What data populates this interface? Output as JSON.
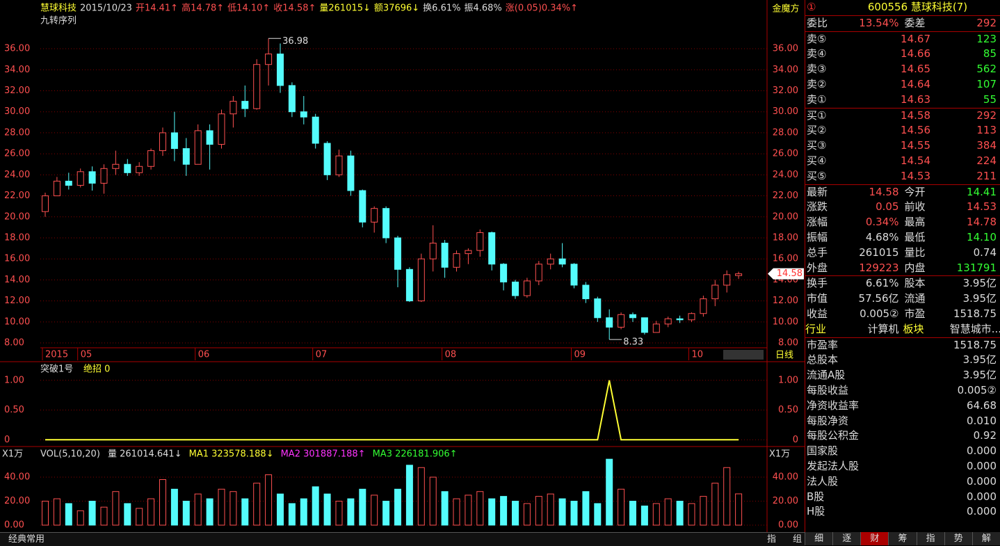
{
  "header": {
    "items": [
      "慧球科技",
      "2015/10/23",
      "开14.41↑",
      "高14.78↑",
      "低14.10↑",
      "收14.58↑",
      "量261015↓",
      "额37696↓",
      "换6.61%",
      "振4.68%",
      "涨(0.05)0.34%↑"
    ],
    "subtitle": "九转序列",
    "brand": "金魔方",
    "period": "日线"
  },
  "chart_data": [
    {
      "type": "candlestick",
      "colors": {
        "up": "#ff5050",
        "down": "#54fcfc"
      },
      "categories": [
        "2015",
        null,
        null,
        "05",
        null,
        null,
        null,
        null,
        null,
        null,
        null,
        null,
        null,
        "06",
        null,
        null,
        null,
        null,
        null,
        null,
        null,
        null,
        null,
        "07",
        null,
        null,
        null,
        null,
        null,
        null,
        null,
        null,
        null,
        null,
        "08",
        null,
        null,
        null,
        null,
        null,
        null,
        null,
        null,
        null,
        null,
        "09",
        null,
        null,
        null,
        null,
        null,
        null,
        null,
        null,
        null,
        "10",
        null,
        null,
        null,
        null
      ],
      "open": [
        20.5,
        22.0,
        23.4,
        23.0,
        24.3,
        23.2,
        24.6,
        25.0,
        24.2,
        24.8,
        26.3,
        28.0,
        26.5,
        25.0,
        28.2,
        26.9,
        29.8,
        31.0,
        30.3,
        34.5,
        35.5,
        32.5,
        30.0,
        29.5,
        27.0,
        24.0,
        25.8,
        22.5,
        19.5,
        20.8,
        18.0,
        15.0,
        12.0,
        16.0,
        17.5,
        15.2,
        16.5,
        16.8,
        18.5,
        15.5,
        13.8,
        12.5,
        13.9,
        15.5,
        16.0,
        15.5,
        13.5,
        12.2,
        10.4,
        9.5,
        10.7,
        10.4,
        9.0,
        9.8,
        10.3,
        10.2,
        10.8,
        12.2,
        13.5,
        14.41
      ],
      "high": [
        22.3,
        23.8,
        24.2,
        24.6,
        24.8,
        25.0,
        26.3,
        25.5,
        25.2,
        26.5,
        28.5,
        30.0,
        27.5,
        28.8,
        28.8,
        30.2,
        31.5,
        32.5,
        35.0,
        36.98,
        36.5,
        32.8,
        31.5,
        29.8,
        27.2,
        26.4,
        26.3,
        22.6,
        21.0,
        21.0,
        18.2,
        15.2,
        16.5,
        19.2,
        17.8,
        16.8,
        17.0,
        18.8,
        18.6,
        15.6,
        14.0,
        14.2,
        15.8,
        16.5,
        17.5,
        15.6,
        13.8,
        12.4,
        11.2,
        10.9,
        10.9,
        10.4,
        10.1,
        10.5,
        10.6,
        10.9,
        12.5,
        14.0,
        14.9,
        14.78
      ],
      "low": [
        20.0,
        22.0,
        22.6,
        22.8,
        22.5,
        22.2,
        24.0,
        23.9,
        23.9,
        24.5,
        25.8,
        25.3,
        23.9,
        25.0,
        24.5,
        26.5,
        28.5,
        29.5,
        30.2,
        32.5,
        31.8,
        29.5,
        28.8,
        26.5,
        23.5,
        23.8,
        22.0,
        19.0,
        18.5,
        17.5,
        13.3,
        11.9,
        11.9,
        14.8,
        14.2,
        14.8,
        15.5,
        16.2,
        14.9,
        13.0,
        12.2,
        12.3,
        13.5,
        15.0,
        15.2,
        13.2,
        11.8,
        10.0,
        8.33,
        9.3,
        10.0,
        8.8,
        9.0,
        9.5,
        9.9,
        10.0,
        10.5,
        11.5,
        12.8,
        14.1
      ],
      "close": [
        22.0,
        23.4,
        23.0,
        24.3,
        23.2,
        24.6,
        25.0,
        24.2,
        24.8,
        26.3,
        28.0,
        26.5,
        25.0,
        28.2,
        26.9,
        29.8,
        31.0,
        30.3,
        34.5,
        35.5,
        32.5,
        30.0,
        29.5,
        27.0,
        24.0,
        25.8,
        22.5,
        19.5,
        20.8,
        18.0,
        15.0,
        12.0,
        16.0,
        17.5,
        15.2,
        16.5,
        16.8,
        18.5,
        15.5,
        13.8,
        12.5,
        13.9,
        15.5,
        16.0,
        15.5,
        13.5,
        12.2,
        10.4,
        9.5,
        10.7,
        10.4,
        9.0,
        9.8,
        10.3,
        10.2,
        10.8,
        12.2,
        13.5,
        14.5,
        14.58
      ],
      "ylim": [
        7.54,
        37.99
      ],
      "yticks": [
        {
          "value": 8,
          "label": "8.00"
        },
        {
          "value": 10,
          "label": "10.00"
        },
        {
          "value": 12,
          "label": "12.00"
        },
        {
          "value": 14,
          "label": "14.00"
        },
        {
          "value": 16,
          "label": "16.00"
        },
        {
          "value": 18,
          "label": "18.00"
        },
        {
          "value": 20,
          "label": "20.00"
        },
        {
          "value": 22,
          "label": "22.00"
        },
        {
          "value": 24,
          "label": "24.00"
        },
        {
          "value": 26,
          "label": "26.00"
        },
        {
          "value": 28,
          "label": "28.00"
        },
        {
          "value": 30,
          "label": "30.00"
        },
        {
          "value": 32,
          "label": "32.00"
        },
        {
          "value": 34,
          "label": "34.00"
        },
        {
          "value": 36,
          "label": "36.00"
        }
      ],
      "annotations": [
        {
          "text": "36.98",
          "value": 36.98,
          "index": 19
        },
        {
          "text": "8.33",
          "value": 8.33,
          "index": 48
        }
      ],
      "last_price": {
        "value": 14.58,
        "label": "14.58"
      }
    },
    {
      "type": "line",
      "title": "突破1号",
      "series": [
        {
          "name": "绝招 0",
          "color": "#ffff33",
          "values": [
            0,
            0,
            0,
            0,
            0,
            0,
            0,
            0,
            0,
            0,
            0,
            0,
            0,
            0,
            0,
            0,
            0,
            0,
            0,
            0,
            0,
            0,
            0,
            0,
            0,
            0,
            0,
            0,
            0,
            0,
            0,
            0,
            0,
            0,
            0,
            0,
            0,
            0,
            0,
            0,
            0,
            0,
            0,
            0,
            0,
            0,
            0,
            0,
            1,
            0,
            0,
            0,
            0,
            0,
            0,
            0,
            0,
            0,
            0,
            0
          ]
        }
      ],
      "ylim": [
        -0.09,
        1.29
      ],
      "yticks": [
        0,
        {
          "value": 0.5,
          "label": "0.50"
        },
        {
          "value": 1,
          "label": "1.00"
        }
      ]
    },
    {
      "type": "bar",
      "title": "VOL(5,10,20)",
      "unit": "X1万",
      "legend": [
        "量 261014.641↓",
        "MA1 323578.188↓",
        "MA2 301887.188↑",
        "MA3 226181.906↑"
      ],
      "values": [
        20,
        22,
        18,
        12,
        20,
        15,
        28,
        18,
        14,
        22,
        38,
        30,
        20,
        26,
        22,
        30,
        28,
        22,
        35,
        42,
        26,
        18,
        22,
        32,
        26,
        20,
        22,
        30,
        25,
        20,
        30,
        50,
        48,
        40,
        28,
        22,
        25,
        28,
        22,
        24,
        20,
        18,
        24,
        26,
        22,
        20,
        28,
        18,
        55,
        30,
        20,
        16,
        18,
        22,
        20,
        18,
        24,
        35,
        48,
        26.1
      ],
      "ylim": [
        -2.9,
        63.8
      ],
      "yticks": [
        {
          "value": 0,
          "label": "0.00"
        },
        {
          "value": 20,
          "label": "20.00"
        },
        {
          "value": 40,
          "label": "40.00"
        }
      ]
    }
  ],
  "quote": {
    "title": [
      "①",
      "600556 慧球科技(7)"
    ],
    "rows": [
      [
        "委比",
        "13.54%",
        "委差",
        "292"
      ],
      [
        "卖⑤",
        "14.67",
        "123"
      ],
      [
        "卖④",
        "14.66",
        "85"
      ],
      [
        "卖③",
        "14.65",
        "562"
      ],
      [
        "卖②",
        "14.64",
        "107"
      ],
      [
        "卖①",
        "14.63",
        "55"
      ],
      [
        "买①",
        "14.58",
        "292"
      ],
      [
        "买②",
        "14.56",
        "113"
      ],
      [
        "买③",
        "14.55",
        "384"
      ],
      [
        "买④",
        "14.54",
        "224"
      ],
      [
        "买⑤",
        "14.53",
        "211"
      ],
      [
        "最新",
        "14.58",
        "今开",
        "14.41"
      ],
      [
        "涨跌",
        "0.05",
        "前收",
        "14.53"
      ],
      [
        "涨幅",
        "0.34%",
        "最高",
        "14.78"
      ],
      [
        "振幅",
        "4.68%",
        "最低",
        "14.10"
      ],
      [
        "总手",
        "261015",
        "量比",
        "0.74"
      ],
      [
        "外盘",
        "129223",
        "内盘",
        "131791"
      ],
      [
        "换手",
        "6.61%",
        "股本",
        "3.95亿"
      ],
      [
        "市值",
        "57.56亿",
        "流通",
        "3.95亿"
      ],
      [
        "收益",
        "0.005②",
        "市盈",
        "1518.75"
      ],
      [
        "行业",
        "计算机",
        "板块",
        "智慧城市..."
      ]
    ],
    "finance": [
      [
        "市盈率",
        "1518.75"
      ],
      [
        "总股本",
        "3.95亿"
      ],
      [
        "流通A股",
        "3.95亿"
      ],
      [
        "每股收益",
        "0.005②"
      ],
      [
        "净资收益率",
        "64.68"
      ],
      [
        "每股净资",
        "0.010"
      ],
      [
        "每股公积金",
        "0.92"
      ],
      [
        "国家股",
        "0.000"
      ],
      [
        "发起法人股",
        "0.000"
      ],
      [
        "法人股",
        "0.000"
      ],
      [
        "B股",
        "0.000"
      ],
      [
        "H股",
        "0.000"
      ]
    ]
  },
  "tabs": [
    "细",
    "逐",
    "财",
    "筹",
    "指",
    "势",
    "解"
  ],
  "footer": [
    "经典常用",
    "指",
    "组"
  ]
}
